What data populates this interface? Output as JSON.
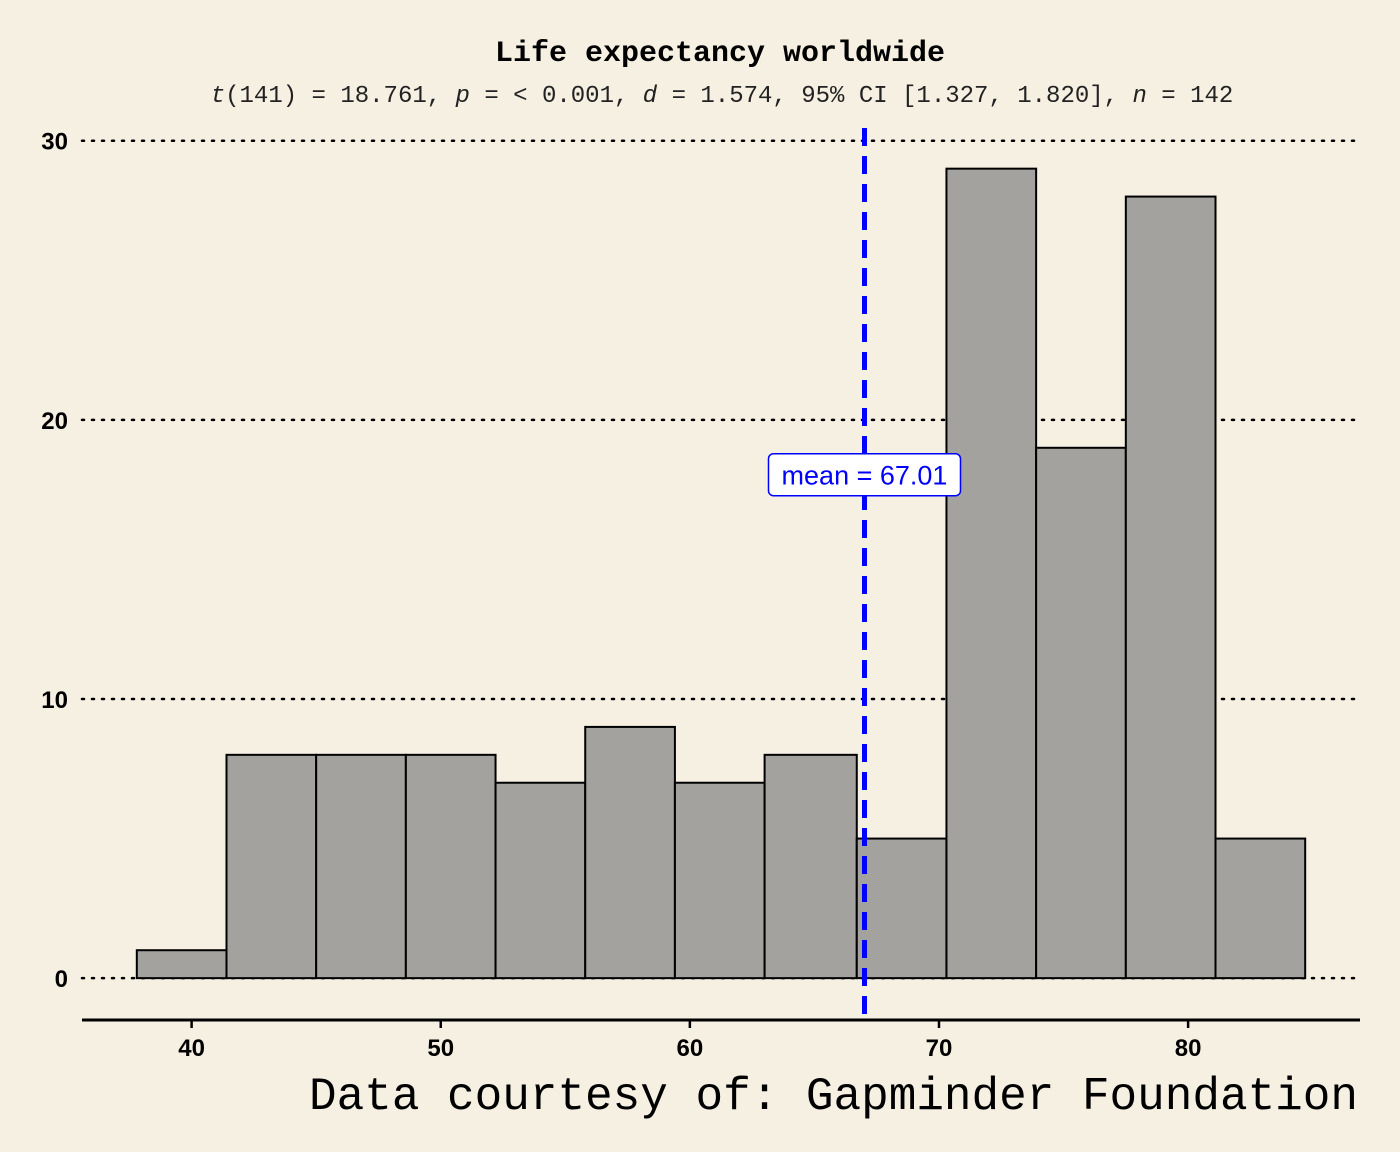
{
  "chart_data": {
    "type": "bar",
    "title": "Life expectancy worldwide",
    "subtitle": {
      "t_stat": "t",
      "t_df": "(141) = 18.761, ",
      "p_sym": "p",
      "p_val": " = < 0.001, ",
      "d_sym": "d",
      "d_val": " = 1.574, 95% CI [1.327, 1.820], ",
      "n_sym": "n",
      "n_val": " = 142"
    },
    "xlabel": "",
    "ylabel": "",
    "xlim": [
      35.6,
      86.9
    ],
    "ylim": [
      -1.5,
      30.6
    ],
    "xticks": [
      40,
      50,
      60,
      70,
      80
    ],
    "yticks": [
      0,
      10,
      20,
      30
    ],
    "bins": [
      {
        "x0": 37.8,
        "x1": 41.4,
        "count": 1
      },
      {
        "x0": 41.4,
        "x1": 45.0,
        "count": 8
      },
      {
        "x0": 45.0,
        "x1": 48.6,
        "count": 8
      },
      {
        "x0": 48.6,
        "x1": 52.2,
        "count": 8
      },
      {
        "x0": 52.2,
        "x1": 55.8,
        "count": 7
      },
      {
        "x0": 55.8,
        "x1": 59.4,
        "count": 9
      },
      {
        "x0": 59.4,
        "x1": 63.0,
        "count": 7
      },
      {
        "x0": 63.0,
        "x1": 66.7,
        "count": 8
      },
      {
        "x0": 66.7,
        "x1": 70.3,
        "count": 5
      },
      {
        "x0": 70.3,
        "x1": 73.9,
        "count": 29
      },
      {
        "x0": 73.9,
        "x1": 77.5,
        "count": 19
      },
      {
        "x0": 77.5,
        "x1": 81.1,
        "count": 28
      },
      {
        "x0": 81.1,
        "x1": 84.7,
        "count": 5
      }
    ],
    "mean": 67.01,
    "mean_label": "mean = 67.01",
    "caption": "Data courtesy of: Gapminder Foundation",
    "grid": "horizontal dotted",
    "colors": {
      "background": "#f6f0e3",
      "bar_fill": "#a3a29f",
      "bar_stroke": "#000000",
      "mean_line": "#0000ff",
      "grid": "#000000"
    }
  }
}
